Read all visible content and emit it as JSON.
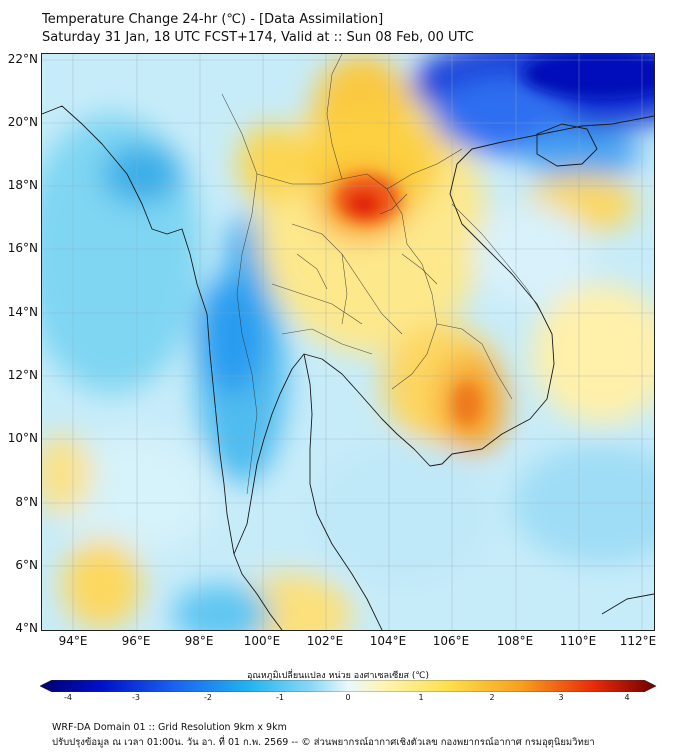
{
  "header": {
    "title_line1": "Temperature Change 24-hr (℃) - [Data Assimilation]",
    "title_line2": "Saturday 31 Jan, 18 UTC FCST+174, Valid at :: Sun 08 Feb, 00 UTC"
  },
  "map": {
    "lat_labels": [
      "22°N",
      "20°N",
      "18°N",
      "16°N",
      "14°N",
      "12°N",
      "10°N",
      "8°N",
      "6°N",
      "4°N"
    ],
    "lon_labels": [
      "94°E",
      "96°E",
      "98°E",
      "100°E",
      "102°E",
      "104°E",
      "106°E",
      "108°E",
      "110°E",
      "112°E"
    ],
    "lat_range": [
      4,
      22.3
    ],
    "lon_range": [
      93,
      112.4
    ],
    "field_colors": {
      "cold_strong": "#0016c8",
      "cold": "#1e90ff",
      "cool": "#4fc8f0",
      "mild_cool": "#a8e4f8",
      "neutral": "#e2f5fb",
      "mild_warm": "#fff0a6",
      "warm": "#fcd23a",
      "hot": "#f59a20",
      "very_hot": "#e8320c"
    }
  },
  "colorbar": {
    "label": "อุณหภูมิเปลี่ยนแปลง หน่วย องศาเซลเซียส (℃)",
    "ticks": [
      "-4",
      "-3",
      "-2",
      "-1",
      "0",
      "1",
      "2",
      "3",
      "4"
    ],
    "range": [
      -4,
      4
    ]
  },
  "footer": {
    "line1": "WRF-DA Domain 01 :: Grid Resolution 9km x 9km",
    "line2": "ปรับปรุงข้อมูล ณ เวลา 01:00น. วัน อา. ที่ 01 ก.พ. 2569 -- © ส่วนพยากรณ์อากาศเชิงตัวเลข กองพยากรณ์อากาศ กรมอุตุนิยมวิทยา"
  }
}
